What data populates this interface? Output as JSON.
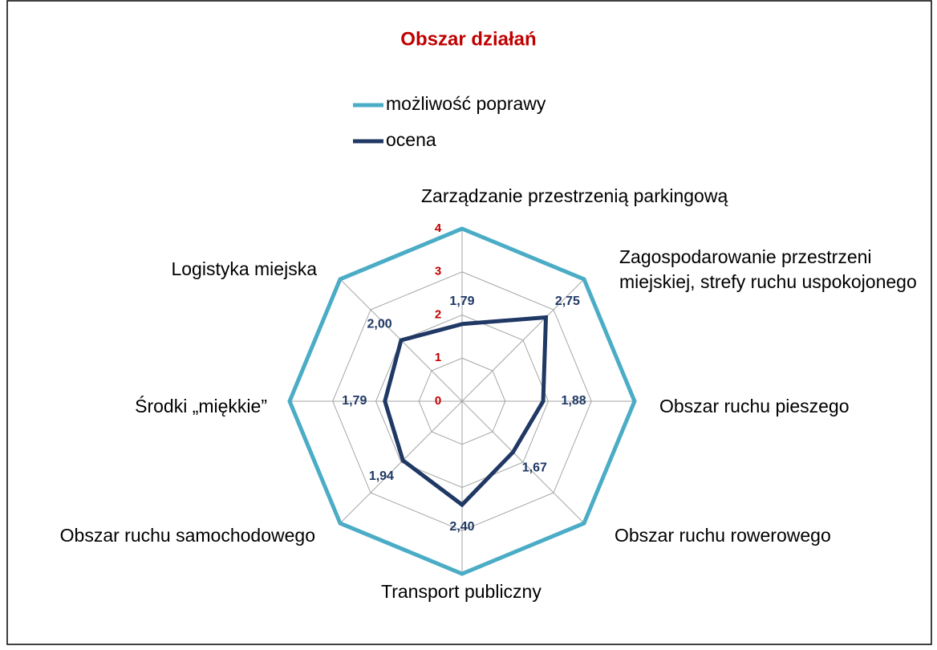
{
  "chart_data": {
    "type": "radar",
    "title": "Obszar działań",
    "categories": [
      "Zarządzanie przestrzenią parkingową",
      "Zagospodarowanie przestrzeni miejskiej, strefy ruchu uspokojonego",
      "Obszar ruchu pieszego",
      "Obszar ruchu rowerowego",
      "Transport publiczny",
      "Obszar ruchu samochodowego",
      "Środki „miękkie”",
      "Logistyka miejska"
    ],
    "series": [
      {
        "name": "możliwość poprawy",
        "color": "#4bacc6",
        "values": [
          4,
          4,
          4,
          4,
          4,
          4,
          4,
          4
        ]
      },
      {
        "name": "ocena",
        "color": "#1f3864",
        "values": [
          1.79,
          2.75,
          1.88,
          1.67,
          2.4,
          1.94,
          1.79,
          2.0
        ],
        "value_labels": [
          "1,79",
          "2,75",
          "1,88",
          "1,67",
          "2,40",
          "1,94",
          "1,79",
          "2,00"
        ]
      }
    ],
    "ylim": [
      0,
      4
    ],
    "yticks": [
      0,
      1,
      2,
      3,
      4
    ],
    "grid": true
  }
}
